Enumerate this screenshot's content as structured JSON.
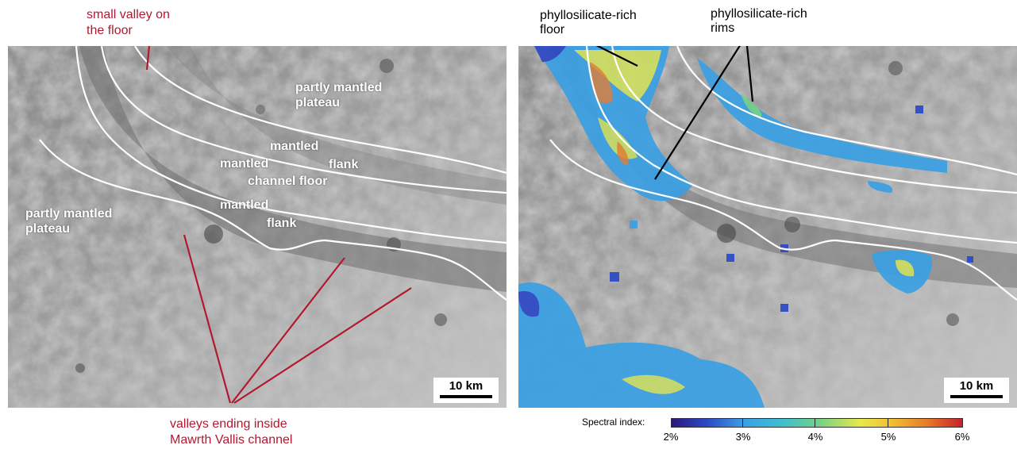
{
  "left_panel": {
    "labels": {
      "partly_mantled_plateau_top": "partly mantled\nplateau",
      "mantled_upper": "mantled",
      "flank_upper": "flank",
      "mantled_channel": "mantled",
      "channel_floor": "channel floor",
      "mantled_lower": "mantled",
      "flank_lower": "flank",
      "partly_mantled_plateau_left": "partly mantled\nplateau"
    },
    "scale_bar": "10 km"
  },
  "annotations": {
    "small_valley": "small valley on\nthe floor",
    "valleys_ending": "valleys ending inside\nMawrth Vallis channel",
    "phyllosilicate_floor": "phyllosilicate-rich\nfloor",
    "phyllosilicate_rims": "phyllosilicate-rich\nrims"
  },
  "right_panel": {
    "scale_bar": "10 km"
  },
  "colorbar": {
    "label": "Spectral index:",
    "ticks": [
      "2%",
      "3%",
      "4%",
      "5%",
      "6%"
    ],
    "colors": [
      "#2a1b7a",
      "#3aa0e4",
      "#6fd08a",
      "#e7e94b",
      "#c7202a"
    ]
  }
}
